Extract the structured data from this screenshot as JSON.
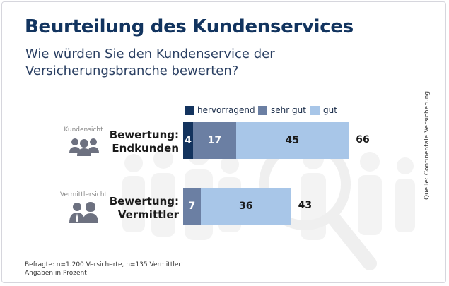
{
  "header": {
    "title": "Beurteilung des Kundenservices",
    "subtitle": "Wie würden Sie den Kundenservice der Versicherungsbranche bewerten?"
  },
  "legend": [
    {
      "label": "hervorragend",
      "color": "#13335e"
    },
    {
      "label": "sehr gut",
      "color": "#6b7fa3"
    },
    {
      "label": "gut",
      "color": "#a8c6e8"
    }
  ],
  "rows": [
    {
      "side_label": "Kundensicht",
      "icon": "customer-group-icon",
      "label_line1": "Bewertung:",
      "label_line2": "Endkunden"
    },
    {
      "side_label": "Vermittlersicht",
      "icon": "agent-pair-icon",
      "label_line1": "Bewertung:",
      "label_line2": "Vermittler"
    }
  ],
  "chart_data": {
    "type": "bar",
    "orientation": "horizontal",
    "stacked": true,
    "title": "Beurteilung des Kundenservices",
    "subtitle": "Wie würden Sie den Kundenservice der Versicherungsbranche bewerten?",
    "categories": [
      "Bewertung: Endkunden",
      "Bewertung: Vermittler"
    ],
    "series": [
      {
        "name": "hervorragend",
        "values": [
          4,
          null
        ]
      },
      {
        "name": "sehr gut",
        "values": [
          17,
          7
        ]
      },
      {
        "name": "gut",
        "values": [
          45,
          36
        ]
      }
    ],
    "totals": [
      66,
      43
    ],
    "unit": "Prozent",
    "legend_position": "top",
    "grid": false
  },
  "footer": {
    "note_line1": "Befragte: n=1.200 Versicherte, n=135 Vermittler",
    "note_line2": "Angaben in Prozent",
    "source": "Quelle: Continentale Versicherung"
  },
  "colors": {
    "title": "#12345f",
    "hervorragend": "#13335e",
    "sehr_gut": "#6b7fa3",
    "gut": "#a8c6e8",
    "background_figures": "#f2f2f2"
  }
}
